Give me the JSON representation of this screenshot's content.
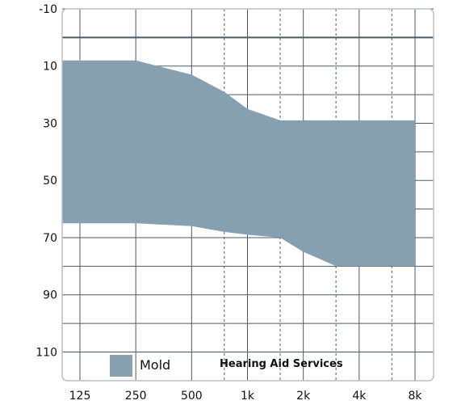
{
  "chart_data": {
    "type": "area",
    "title": "",
    "xlabel": "",
    "ylabel": "",
    "x_scale": "log2",
    "x_ticks": [
      {
        "freq": 125,
        "label": "125"
      },
      {
        "freq": 250,
        "label": "250"
      },
      {
        "freq": 500,
        "label": "500"
      },
      {
        "freq": 1000,
        "label": "1k"
      },
      {
        "freq": 2000,
        "label": "2k"
      },
      {
        "freq": 4000,
        "label": "4k"
      },
      {
        "freq": 8000,
        "label": "8k"
      }
    ],
    "minor_x_ticks": [
      750,
      1500,
      3000,
      6000
    ],
    "y_ticks": [
      -10,
      10,
      30,
      50,
      70,
      90,
      110
    ],
    "y_minor_ticks": [
      0,
      20,
      40,
      60,
      80,
      100
    ],
    "ylim": [
      -10,
      115
    ],
    "y_inverted": true,
    "xlim": [
      110,
      10000
    ],
    "reference_line": 0,
    "grid": true,
    "legend_position": "bottom-left",
    "series": [
      {
        "name": "Mold",
        "color": "#86a0b1",
        "upper": {
          "x": [
            92,
            250,
            500,
            750,
            1000,
            1500,
            8000
          ],
          "y": [
            8,
            8,
            13,
            19,
            25,
            29,
            29
          ]
        },
        "lower": {
          "x": [
            92,
            250,
            500,
            750,
            1000,
            1500,
            2000,
            3000,
            8000
          ],
          "y": [
            65,
            65,
            66,
            68,
            69,
            70,
            75,
            80,
            80
          ]
        }
      }
    ]
  },
  "legend": {
    "label": "Mold"
  },
  "brand": {
    "text": "Hearing Aid Services"
  },
  "colors": {
    "grid": "#4b5a69",
    "fill": "#86a0b1",
    "frame": "#b7bfc7"
  }
}
